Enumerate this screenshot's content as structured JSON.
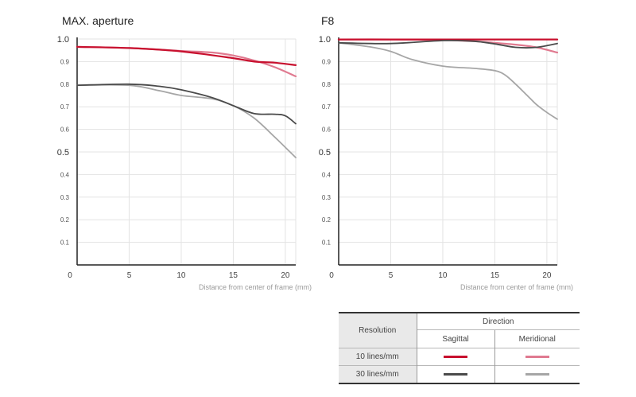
{
  "chart_data": [
    {
      "type": "line",
      "title": "MAX. aperture",
      "xlabel": "Distance from center of frame (mm)",
      "ylabel": "",
      "xlim": [
        0,
        21
      ],
      "ylim": [
        0,
        1.0
      ],
      "xticks": [
        "0",
        "5",
        "10",
        "15",
        "20"
      ],
      "yticks": [
        "0.1",
        "0.2",
        "0.3",
        "0.4",
        "0.5",
        "0.6",
        "0.7",
        "0.8",
        "0.9",
        "1.0"
      ],
      "grid": true,
      "series": [
        {
          "name": "10 lines/mm Meridional",
          "color": "#e07a90",
          "x": [
            0,
            5,
            10,
            13,
            15,
            17,
            19,
            21
          ],
          "y": [
            0.965,
            0.96,
            0.947,
            0.94,
            0.927,
            0.905,
            0.875,
            0.835
          ]
        },
        {
          "name": "10 lines/mm Sagittal",
          "color": "#c8102e",
          "x": [
            0,
            5,
            10,
            15,
            17,
            19,
            21
          ],
          "y": [
            0.965,
            0.96,
            0.945,
            0.915,
            0.9,
            0.895,
            0.884
          ]
        },
        {
          "name": "30 lines/mm Meridional",
          "color": "#a6a6a6",
          "x": [
            0,
            5,
            8,
            10,
            13,
            15,
            17,
            19,
            21
          ],
          "y": [
            0.795,
            0.795,
            0.77,
            0.75,
            0.735,
            0.705,
            0.65,
            0.565,
            0.475
          ]
        },
        {
          "name": "30 lines/mm Sagittal",
          "color": "#4a4a4a",
          "x": [
            0,
            5,
            8,
            10,
            13,
            15,
            17,
            19,
            20,
            21
          ],
          "y": [
            0.795,
            0.8,
            0.79,
            0.775,
            0.74,
            0.705,
            0.67,
            0.667,
            0.66,
            0.625
          ]
        }
      ]
    },
    {
      "type": "line",
      "title": "F8",
      "xlabel": "Distance from center of frame (mm)",
      "ylabel": "",
      "xlim": [
        0,
        21
      ],
      "ylim": [
        0,
        1.0
      ],
      "xticks": [
        "0",
        "5",
        "10",
        "15",
        "20"
      ],
      "yticks": [
        "0.1",
        "0.2",
        "0.3",
        "0.4",
        "0.5",
        "0.6",
        "0.7",
        "0.8",
        "0.9",
        "1.0"
      ],
      "grid": true,
      "series": [
        {
          "name": "10 lines/mm Meridional",
          "color": "#e07a90",
          "x": [
            0,
            5,
            10,
            13,
            15,
            17,
            19,
            21
          ],
          "y": [
            0.998,
            0.998,
            0.995,
            0.99,
            0.983,
            0.975,
            0.963,
            0.94
          ]
        },
        {
          "name": "10 lines/mm Sagittal",
          "color": "#c8102e",
          "x": [
            0,
            5,
            10,
            15,
            21
          ],
          "y": [
            0.998,
            0.998,
            0.998,
            0.998,
            0.998
          ]
        },
        {
          "name": "30 lines/mm Meridional",
          "color": "#a6a6a6",
          "x": [
            0,
            3,
            5,
            7,
            10,
            13,
            15,
            16,
            17,
            18,
            19,
            20,
            21
          ],
          "y": [
            0.983,
            0.965,
            0.945,
            0.91,
            0.88,
            0.87,
            0.86,
            0.84,
            0.8,
            0.755,
            0.71,
            0.675,
            0.645
          ]
        },
        {
          "name": "30 lines/mm Sagittal",
          "color": "#4a4a4a",
          "x": [
            0,
            5,
            10,
            13,
            15,
            17,
            19,
            21
          ],
          "y": [
            0.983,
            0.98,
            0.993,
            0.99,
            0.978,
            0.963,
            0.963,
            0.98
          ]
        }
      ]
    }
  ],
  "legend": {
    "row_header": "Resolution",
    "direction_label": "Direction",
    "columns": [
      "Sagittal",
      "Meridional"
    ],
    "rows": [
      {
        "label": "10 lines/mm",
        "sagittal_color": "#c8102e",
        "meridional_color": "#e07a90"
      },
      {
        "label": "30 lines/mm",
        "sagittal_color": "#4a4a4a",
        "meridional_color": "#a6a6a6"
      }
    ]
  }
}
